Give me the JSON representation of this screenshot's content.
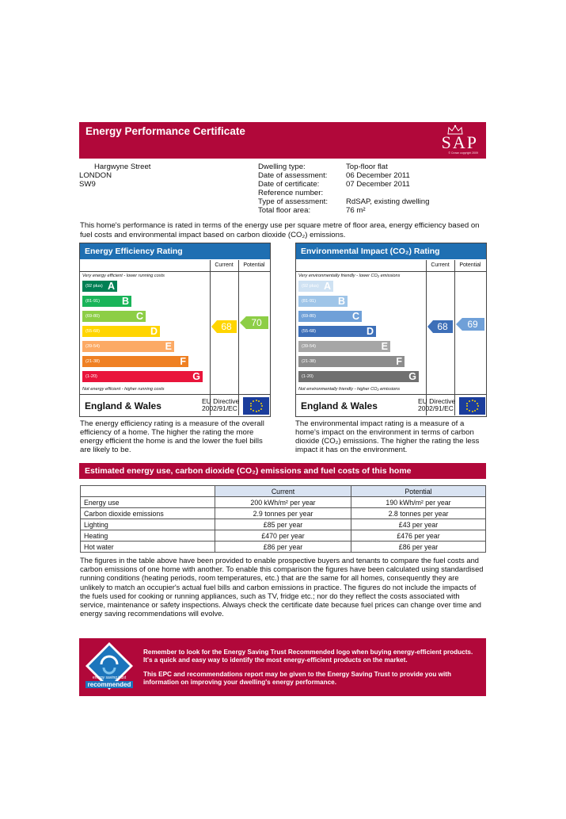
{
  "header": {
    "title": "Energy Performance Certificate",
    "logo_text": "SAP",
    "logo_copyright": "© Crown copyright 2009"
  },
  "address": {
    "street": "Hargwyne Street",
    "city": "LONDON",
    "postcode": "SW9"
  },
  "details": [
    {
      "label": "Dwelling type:",
      "value": "Top-floor flat"
    },
    {
      "label": "Date of assessment:",
      "value": "06 December 2011"
    },
    {
      "label": "Date of certificate:",
      "value": "07 December 2011"
    },
    {
      "label": "Reference number:",
      "value": ""
    },
    {
      "label": "Type of assessment:",
      "value": "RdSAP, existing dwelling"
    },
    {
      "label": "Total floor area:",
      "value": "76 m²"
    }
  ],
  "intro": "This home's performance is rated in terms of the energy use per square metre of floor area, energy efficiency based on fuel costs and environmental impact based on carbon dioxide (CO₂) emissions.",
  "efficiency": {
    "title": "Energy Efficiency Rating",
    "col_current": "Current",
    "col_potential": "Potential",
    "top_note": "Very energy efficient - lower running costs",
    "bottom_note": "Not energy efficient - higher running costs",
    "bands": [
      {
        "range": "(92 plus)",
        "letter": "A",
        "color": "#008054"
      },
      {
        "range": "(81-91)",
        "letter": "B",
        "color": "#19b459"
      },
      {
        "range": "(69-80)",
        "letter": "C",
        "color": "#8dce46"
      },
      {
        "range": "(55-68)",
        "letter": "D",
        "color": "#ffd500"
      },
      {
        "range": "(39-54)",
        "letter": "E",
        "color": "#fcaa65"
      },
      {
        "range": "(21-38)",
        "letter": "F",
        "color": "#ef8023"
      },
      {
        "range": "(1-20)",
        "letter": "G",
        "color": "#e9153b"
      }
    ],
    "current": "68",
    "current_color": "#ffd500",
    "potential": "70",
    "potential_color": "#8dce46",
    "region": "England & Wales",
    "directive": "EU Directive 2002/91/EC",
    "description": "The energy efficiency rating is a measure of the overall efficiency of a home. The higher the rating the more energy efficient the home is and the lower the fuel bills are likely to be."
  },
  "environment": {
    "title": "Environmental Impact (CO₂) Rating",
    "col_current": "Current",
    "col_potential": "Potential",
    "top_note": "Very environmentally friendly - lower CO₂ emissions",
    "bottom_note": "Not environmentally friendly - higher CO₂ emissions",
    "bands": [
      {
        "range": "(92 plus)",
        "letter": "A",
        "color": "#cfe2f3"
      },
      {
        "range": "(81-91)",
        "letter": "B",
        "color": "#9fc5e8"
      },
      {
        "range": "(69-80)",
        "letter": "C",
        "color": "#6fa0d8"
      },
      {
        "range": "(55-68)",
        "letter": "D",
        "color": "#3d6fb8"
      },
      {
        "range": "(39-54)",
        "letter": "E",
        "color": "#a6a6a6"
      },
      {
        "range": "(21-38)",
        "letter": "F",
        "color": "#8c8c8c"
      },
      {
        "range": "(1-20)",
        "letter": "G",
        "color": "#707070"
      }
    ],
    "current": "68",
    "current_color": "#3d6fb8",
    "potential": "69",
    "potential_color": "#6fa0d8",
    "region": "England & Wales",
    "directive": "EU Directive 2002/91/EC",
    "description": "The environmental impact rating is a measure of a home's impact on the environment in terms of carbon dioxide (CO₂) emissions. The higher the rating the less impact it has on the environment."
  },
  "costs": {
    "title": "Estimated energy use, carbon dioxide (CO₂) emissions and fuel costs of this home",
    "col_current": "Current",
    "col_potential": "Potential",
    "rows": [
      {
        "label": "Energy use",
        "current": "200 kWh/m² per year",
        "potential": "190 kWh/m² per year"
      },
      {
        "label": "Carbon dioxide emissions",
        "current": "2.9 tonnes per year",
        "potential": "2.8 tonnes per year"
      },
      {
        "label": "Lighting",
        "current": "£85 per year",
        "potential": "£43 per year"
      },
      {
        "label": "Heating",
        "current": "£470 per year",
        "potential": "£476 per year"
      },
      {
        "label": "Hot water",
        "current": "£86 per year",
        "potential": "£86 per year"
      }
    ]
  },
  "explanation": "The figures in the table above have been provided to enable prospective buyers and tenants to compare the fuel costs and carbon emissions of one home with another. To enable this comparison the figures have been calculated using standardised running conditions (heating periods, room temperatures, etc.) that are the same for all homes, consequently they are unlikely to match an occupier's actual fuel bills and carbon emissions in practice. The figures do not include the impacts of the fuels used for cooking or running appliances, such as TV, fridge etc.; nor do they reflect the costs associated with service, maintenance or safety inspections. Always check the certificate date because fuel prices can change over time and energy saving recommendations will evolve.",
  "footer": {
    "logo_top": "energy saving trust",
    "logo_label": "recommended",
    "line1": "Remember to look for the Energy Saving Trust Recommended logo when buying energy-efficient products. It's a quick and easy way to identify the most energy-efficient products on the market.",
    "line2": "This EPC and recommendations report may be given to the Energy Saving Trust to provide you with information on improving your dwelling's energy performance."
  }
}
